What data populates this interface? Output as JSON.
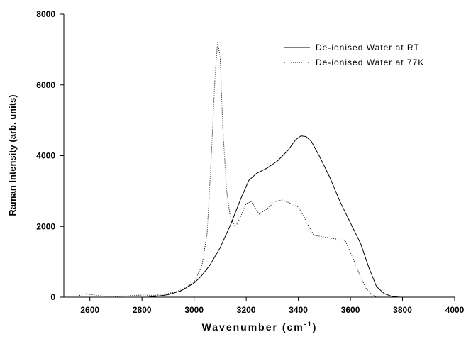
{
  "chart_data": {
    "type": "line",
    "xlabel": "Wavenumber (cm",
    "xlabel_sup": "-1",
    "xlabel_close": ")",
    "ylabel": "Raman Intensity (arb. units)",
    "xlim": [
      2500,
      4000
    ],
    "ylim": [
      0,
      8000
    ],
    "x_ticks": [
      2600,
      2800,
      3000,
      3200,
      3400,
      3600,
      3800,
      4000
    ],
    "y_ticks": [
      0,
      2000,
      4000,
      6000,
      8000
    ],
    "grid": false,
    "legend_position": "top-right",
    "series": [
      {
        "name": "De-ionised Water at RT",
        "style": "solid",
        "color": "#000000",
        "x": [
          2820,
          2850,
          2900,
          2950,
          3000,
          3030,
          3060,
          3100,
          3140,
          3180,
          3210,
          3240,
          3280,
          3320,
          3360,
          3390,
          3410,
          3430,
          3450,
          3480,
          3520,
          3560,
          3600,
          3640,
          3670,
          3700,
          3730,
          3760,
          3790
        ],
        "y": [
          0,
          20,
          70,
          180,
          400,
          620,
          900,
          1400,
          2050,
          2800,
          3300,
          3500,
          3650,
          3850,
          4150,
          4450,
          4560,
          4540,
          4400,
          4000,
          3400,
          2700,
          2100,
          1500,
          850,
          300,
          100,
          20,
          0
        ]
      },
      {
        "name": "De-ionised Water at 77K",
        "style": "dotted",
        "color": "#000000",
        "x": [
          2560,
          2580,
          2600,
          2650,
          2700,
          2750,
          2800,
          2850,
          2900,
          2950,
          3000,
          3030,
          3050,
          3065,
          3080,
          3090,
          3100,
          3110,
          3125,
          3140,
          3160,
          3180,
          3200,
          3220,
          3250,
          3280,
          3310,
          3340,
          3370,
          3400,
          3420,
          3440,
          3460,
          3500,
          3540,
          3580,
          3610,
          3640,
          3660,
          3680,
          3700
        ],
        "y": [
          50,
          100,
          80,
          30,
          20,
          40,
          60,
          50,
          100,
          200,
          420,
          900,
          1800,
          3800,
          6200,
          7200,
          6800,
          4800,
          3000,
          2200,
          2000,
          2300,
          2650,
          2700,
          2350,
          2500,
          2700,
          2750,
          2650,
          2550,
          2300,
          2000,
          1750,
          1700,
          1650,
          1600,
          1100,
          550,
          250,
          80,
          0
        ]
      }
    ]
  }
}
